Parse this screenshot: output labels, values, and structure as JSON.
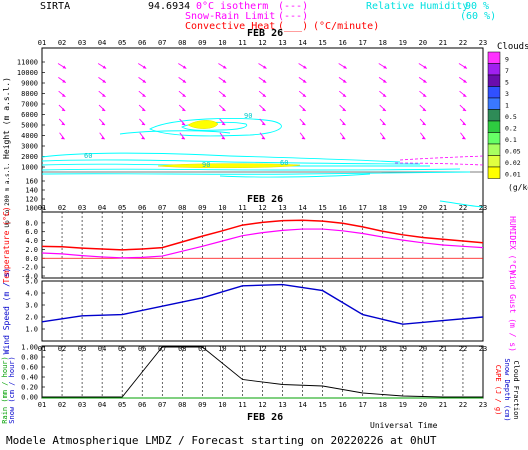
{
  "header": {
    "station": "SIRTA",
    "code": "94.6934",
    "legend": [
      {
        "label": "0°C isotherm",
        "swatch": "(---)",
        "color": "#ff00ff"
      },
      {
        "label": "Snow-Rain Limit",
        "swatch": "(---)",
        "color": "#ff00ff"
      },
      {
        "label": "Convective Heat",
        "swatch": "(___)",
        "suffix": "(°C/minute)",
        "color": "#ff0000"
      }
    ],
    "rh": [
      {
        "label": "Relative Humidity",
        "value": "90 %",
        "color": "#00e0e0"
      },
      {
        "label": "",
        "value": "(60 %)",
        "color": "#00e0e0"
      }
    ]
  },
  "footer": {
    "title": "Modele Atmospherique LMDZ / Forecast starting on 20220226 at 0hUT",
    "universal_time": "Universal Time"
  },
  "colors": {
    "wind_arrows": "#ff00ff",
    "humidity": "#00ffff",
    "cloud_fill": "#ffff00",
    "temperature": "#ff0000",
    "humidex": "#ff00ff",
    "wind": "#0000cc",
    "precip_black": "#000000"
  },
  "chart_data": [
    {
      "type": "area",
      "panel": "vertical-profile",
      "date_label": "FEB 26",
      "x_ticks": [
        "01",
        "02",
        "03",
        "04",
        "05",
        "06",
        "07",
        "08",
        "09",
        "10",
        "11",
        "12",
        "13",
        "14",
        "15",
        "16",
        "17",
        "18",
        "19",
        "20",
        "21",
        "22",
        "23"
      ],
      "ylabel": "Height (m a.s.l.)",
      "ylabel_low": "Up to 200 m a.s.l.",
      "y_ticks_upper": [
        11000,
        10000,
        9000,
        8000,
        7000,
        6000,
        5000,
        4000,
        3000,
        2000,
        1000
      ],
      "y_ticks_lower": [
        160,
        140,
        120,
        100
      ],
      "contour_labels": [
        "90",
        "60",
        "90",
        "60"
      ],
      "cloud_patches": [
        {
          "x": [
            7,
            9.8
          ],
          "height": [
            4800,
            5600
          ]
        },
        {
          "x": [
            7,
            14
          ],
          "height": [
            900,
            1100
          ]
        }
      ],
      "colorbar": {
        "title": "Clouds",
        "ticks": [
          "9",
          "7",
          "5",
          "3",
          "1",
          "0.5",
          "0.2",
          "0.1",
          "0.05",
          "0.02",
          "0.01"
        ],
        "unit": "(g/kg)",
        "colors": [
          "#ff33ff",
          "#a020f0",
          "#6a0dad",
          "#3050ff",
          "#3a78ff",
          "#2e8b57",
          "#2ecc40",
          "#66ff66",
          "#a8ff60",
          "#e0ff40",
          "#ffff00"
        ]
      }
    },
    {
      "type": "line",
      "panel": "temperature",
      "ylabel": "Temperature (°C)",
      "ylabel_right": "HUMIDEX (°C)",
      "y_ticks": [
        "8.0",
        "6.0",
        "4.0",
        "2.0",
        "0.0",
        "-2.0",
        "-4.0"
      ],
      "ylim": [
        -4,
        10
      ],
      "x": [
        1,
        2,
        3,
        4,
        5,
        6,
        7,
        8,
        9,
        10,
        11,
        12,
        13,
        14,
        15,
        16,
        17,
        18,
        19,
        20,
        21,
        22,
        23
      ],
      "series": [
        {
          "values": [
            2.7,
            2.6,
            2.3,
            2.1,
            1.9,
            2.1,
            2.4,
            3.7,
            5.0,
            6.2,
            7.5,
            8.1,
            8.5,
            8.6,
            8.4,
            7.9,
            7.1,
            6.1,
            5.3,
            4.7,
            4.3,
            3.9,
            3.5
          ]
        },
        {
          "values": [
            1.2,
            1.0,
            0.6,
            0.3,
            0.1,
            0.2,
            0.5,
            1.6,
            2.7,
            3.9,
            5.1,
            5.8,
            6.3,
            6.6,
            6.6,
            6.2,
            5.6,
            4.8,
            4.1,
            3.5,
            3.0,
            2.7,
            2.4
          ]
        }
      ]
    },
    {
      "type": "line",
      "panel": "wind",
      "ylabel": "Wind Speed (m / s)",
      "ylabel_right": "Wind Gust (m / s)",
      "y_ticks": [
        "5.0",
        "4.0",
        "3.0",
        "2.0",
        "1.0"
      ],
      "ylim": [
        0,
        5
      ],
      "x": [
        1,
        3,
        5,
        7,
        9,
        11,
        13,
        15,
        17,
        19,
        21,
        23
      ],
      "series": [
        {
          "values": [
            1.6,
            2.1,
            2.2,
            2.9,
            3.6,
            4.6,
            4.7,
            4.2,
            2.2,
            1.4,
            1.7,
            2.0
          ]
        }
      ]
    },
    {
      "type": "line",
      "panel": "precipitation",
      "date_label": "FEB 26",
      "ylabel_left": [
        "Rain (mm / hour)",
        "Snow (cm / hour)"
      ],
      "ylabel_right": [
        "CAPE (J / g)",
        "Snow Depth (cm)",
        "Cloud Fraction"
      ],
      "y_ticks": [
        "1.00",
        "0.80",
        "0.60",
        "0.40",
        "0.20",
        "0.00"
      ],
      "ylim": [
        0,
        1
      ],
      "x": [
        1,
        3,
        5,
        7,
        9,
        11,
        13,
        15,
        17,
        19,
        21,
        23
      ],
      "series": [
        {
          "values": [
            0.0,
            0.0,
            0.0,
            1.0,
            1.0,
            0.35,
            0.25,
            0.22,
            0.08,
            0.02,
            0.0,
            0.0
          ]
        }
      ]
    }
  ]
}
